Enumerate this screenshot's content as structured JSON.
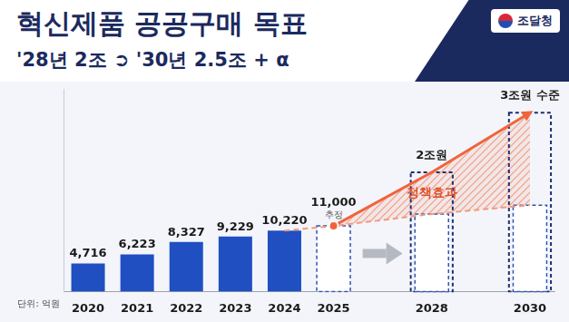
{
  "logo": "조달청",
  "chart_data": {
    "type": "bar",
    "title": "혁신제품 공공구매 목표",
    "subtitle": "'28년 2조 ➲ '30년 2.5조 + α",
    "ylabel": "단위: 억원",
    "categories": [
      "2020",
      "2021",
      "2022",
      "2023",
      "2024",
      "2025",
      null,
      "2028",
      null,
      "2030"
    ],
    "ylim": [
      0,
      34000
    ],
    "grid": false,
    "tick_labels": "x",
    "series": [
      {
        "type": "bar",
        "color": "#1f4fc1",
        "values": [
          4716,
          6223,
          8327,
          9229,
          10220,
          null,
          null,
          null,
          null,
          null
        ],
        "data_labels": true,
        "value_labels": [
          "4,716",
          "6,223",
          "8,327",
          "9,229",
          "10,220",
          null,
          null,
          null,
          null,
          null
        ]
      },
      {
        "type": "bar",
        "color": "#ffffff",
        "line_style": "dashed",
        "values": [
          null,
          null,
          null,
          null,
          null,
          11000,
          null,
          13000,
          null,
          14500
        ],
        "data_labels": true,
        "value_labels": [
          null,
          null,
          null,
          null,
          null,
          "11,000",
          null,
          null,
          null,
          null
        ]
      },
      {
        "type": "bar",
        "color": "#1e2f6e",
        "line_style": "dashed",
        "values": [
          null,
          null,
          null,
          null,
          null,
          null,
          null,
          20000,
          null,
          30000
        ],
        "data_labels": true,
        "value_labels": [
          null,
          null,
          null,
          null,
          null,
          null,
          null,
          "2조원",
          null,
          "3조원 수준"
        ]
      },
      {
        "type": "line",
        "color": "#f0643c",
        "marker": "circle",
        "values": [
          null,
          null,
          null,
          null,
          null,
          11000,
          null,
          20000,
          null,
          30000
        ]
      },
      {
        "type": "line",
        "color": "#f39a7a",
        "line_style": "dashed",
        "values": [
          null,
          null,
          null,
          null,
          10220,
          11000,
          null,
          13000,
          null,
          14500
        ]
      }
    ],
    "annotations": [
      {
        "text": "추정",
        "category": "2025"
      },
      {
        "text": "정책효과",
        "category": "2028"
      }
    ]
  }
}
